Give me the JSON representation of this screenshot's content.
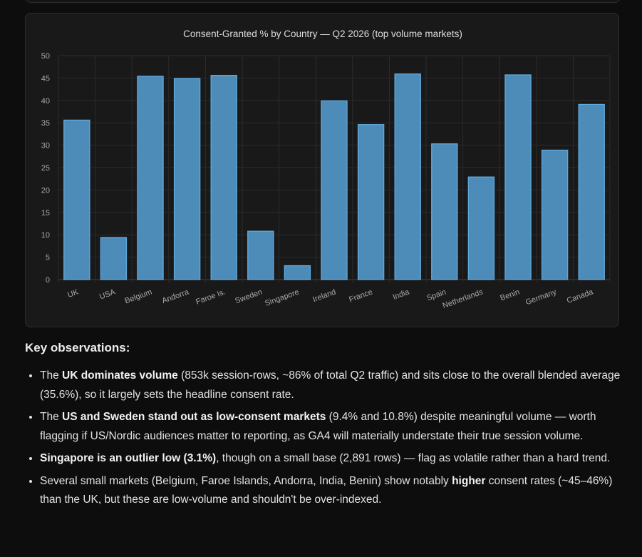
{
  "chart_data": {
    "type": "bar",
    "title": "Consent-Granted % by Country — Q2 2026 (top volume markets)",
    "categories": [
      "UK",
      "USA",
      "Belgium",
      "Andorra",
      "Faroe Is.",
      "Sweden",
      "Singapore",
      "Ireland",
      "France",
      "India",
      "Spain",
      "Netherlands",
      "Benin",
      "Germany",
      "Canada"
    ],
    "values": [
      35.6,
      9.4,
      45.4,
      44.9,
      45.6,
      10.8,
      3.1,
      39.9,
      34.6,
      45.9,
      30.3,
      22.9,
      45.7,
      28.9,
      39.1
    ],
    "yticks": [
      "0",
      "5",
      "10",
      "15",
      "20",
      "25",
      "30",
      "35",
      "40",
      "45",
      "50"
    ],
    "ylim": [
      0,
      50
    ],
    "grid": true,
    "bar_fill": "#4d8cb8",
    "bar_stroke": "#5fa9dc"
  },
  "observations": {
    "heading": "Key observations:",
    "items": [
      {
        "segments": [
          {
            "t": "The ",
            "b": false
          },
          {
            "t": "UK dominates volume",
            "b": true
          },
          {
            "t": " (853k session-rows, ~86% of total Q2 traffic) and sits close to the overall blended average (35.6%), so it largely sets the headline consent rate.",
            "b": false
          }
        ]
      },
      {
        "segments": [
          {
            "t": "The ",
            "b": false
          },
          {
            "t": "US and Sweden stand out as low-consent markets",
            "b": true
          },
          {
            "t": " (9.4% and 10.8%) despite meaningful volume — worth flagging if US/Nordic audiences matter to reporting, as GA4 will materially understate their true session volume.",
            "b": false
          }
        ]
      },
      {
        "segments": [
          {
            "t": "Singapore is an outlier low (3.1%)",
            "b": true
          },
          {
            "t": ", though on a small base (2,891 rows) — flag as volatile rather than a hard trend.",
            "b": false
          }
        ]
      },
      {
        "segments": [
          {
            "t": "Several small markets (Belgium, Faroe Islands, Andorra, India, Benin) show notably ",
            "b": false
          },
          {
            "t": "higher",
            "b": true
          },
          {
            "t": " consent rates (~45–46%) than the UK, but these are low-volume and shouldn't be over-indexed.",
            "b": false
          }
        ]
      }
    ]
  }
}
